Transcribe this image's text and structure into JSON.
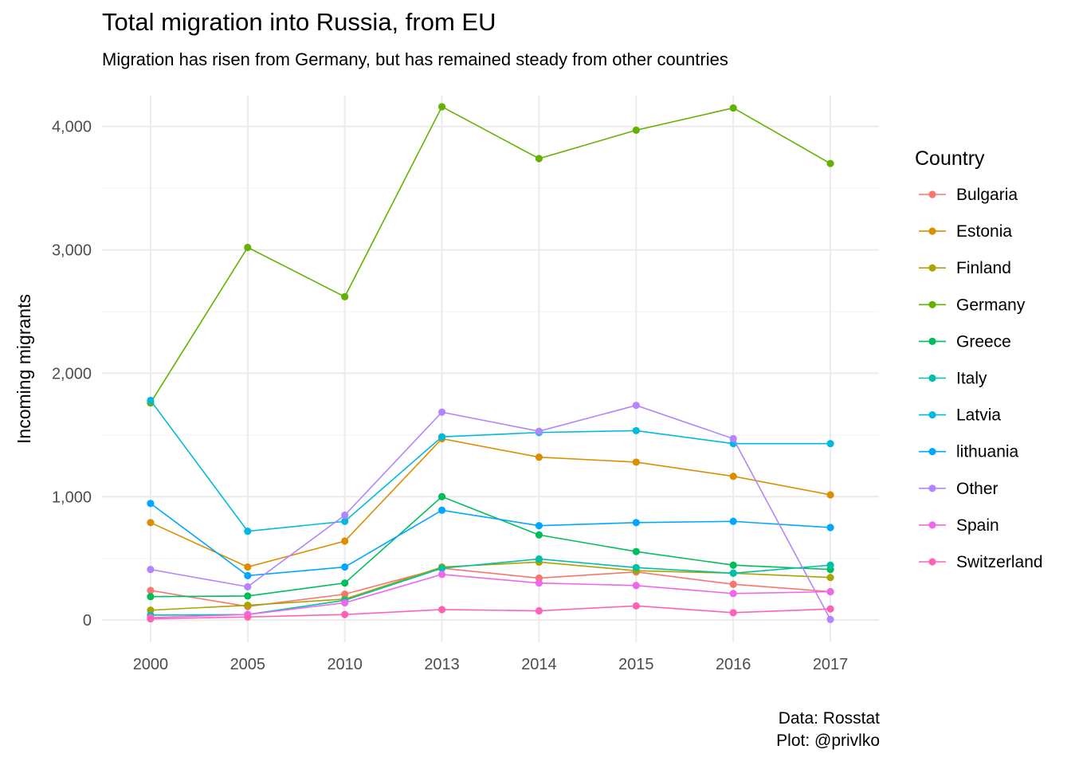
{
  "title": "Total migration into Russia, from EU",
  "subtitle": "Migration has risen from Germany, but has remained steady from other countries",
  "caption_line1": "Data: Rosstat",
  "caption_line2": "Plot: @privlko",
  "chart_data": {
    "type": "line",
    "title": "Total migration into Russia, from EU",
    "subtitle": "Migration has risen from Germany, but has remained steady from other countries",
    "xlabel": "",
    "ylabel": "Incoming migrants",
    "categories": [
      "2000",
      "2005",
      "2010",
      "2013",
      "2014",
      "2015",
      "2016",
      "2017"
    ],
    "ylim": [
      -180,
      4250
    ],
    "yticks": [
      0,
      1000,
      2000,
      3000,
      4000
    ],
    "ytick_labels": [
      "0",
      "1,000",
      "2,000",
      "3,000",
      "4,000"
    ],
    "grid": true,
    "legend": {
      "title": "Country",
      "position": "right"
    },
    "series": [
      {
        "name": "Bulgaria",
        "color": "#F8766D",
        "values": [
          240,
          110,
          210,
          420,
          340,
          390,
          290,
          230
        ]
      },
      {
        "name": "Estonia",
        "color": "#DB8E00",
        "values": [
          790,
          430,
          640,
          1470,
          1320,
          1280,
          1165,
          1015
        ]
      },
      {
        "name": "Finland",
        "color": "#AEA200",
        "values": [
          80,
          120,
          170,
          430,
          470,
          400,
          380,
          345
        ]
      },
      {
        "name": "Germany",
        "color": "#64B200",
        "values": [
          1760,
          3020,
          2620,
          4160,
          3740,
          3970,
          4150,
          3700
        ]
      },
      {
        "name": "Greece",
        "color": "#00BD5C",
        "values": [
          190,
          195,
          300,
          1000,
          690,
          555,
          445,
          410
        ]
      },
      {
        "name": "Italy",
        "color": "#00C1A7",
        "values": [
          40,
          45,
          160,
          420,
          495,
          425,
          380,
          445
        ]
      },
      {
        "name": "Latvia",
        "color": "#00BADE",
        "values": [
          1780,
          720,
          800,
          1485,
          1520,
          1535,
          1430,
          1430
        ]
      },
      {
        "name": "lithuania",
        "color": "#00A6FF",
        "values": [
          945,
          360,
          430,
          890,
          765,
          790,
          800,
          750
        ]
      },
      {
        "name": "Other",
        "color": "#B385FF",
        "values": [
          410,
          270,
          850,
          1685,
          1530,
          1740,
          1470,
          5
        ]
      },
      {
        "name": "Spain",
        "color": "#EF67EB",
        "values": [
          20,
          45,
          140,
          370,
          300,
          280,
          215,
          230
        ]
      },
      {
        "name": "Switzerland",
        "color": "#FF63B6",
        "values": [
          10,
          25,
          45,
          85,
          75,
          115,
          60,
          90
        ]
      }
    ]
  }
}
